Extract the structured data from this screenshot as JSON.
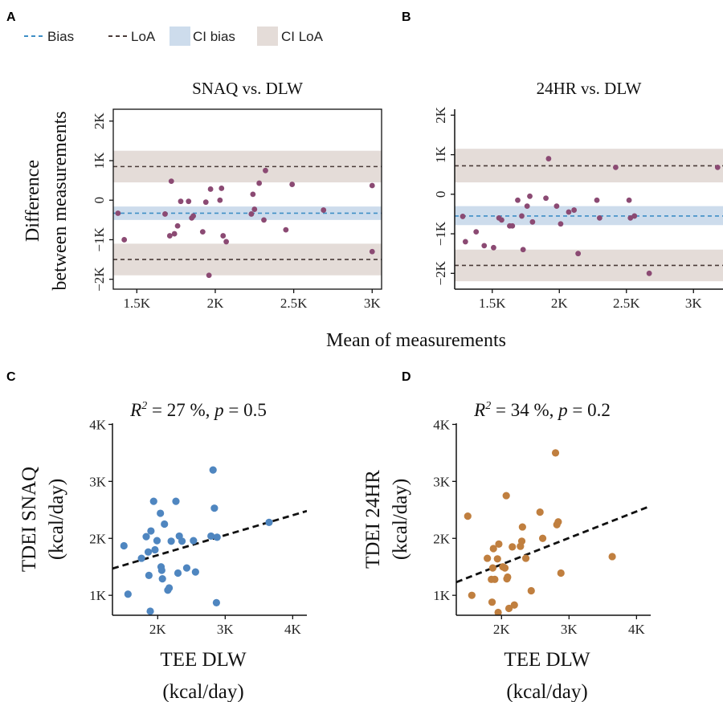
{
  "legend": {
    "items": [
      {
        "label": "Bias",
        "kind": "line",
        "color": "#3f8fc6"
      },
      {
        "label": "LoA",
        "kind": "line",
        "color": "#4a3b38"
      },
      {
        "label": "CI bias",
        "kind": "box",
        "color": "#cddcec"
      },
      {
        "label": "CI LoA",
        "kind": "box",
        "color": "#e4dcd8"
      }
    ]
  },
  "shared_labels": {
    "bland_altman_xlabel": "Mean of measurements",
    "bland_altman_ylabel_line1": "Difference",
    "bland_altman_ylabel_line2": "between measurements"
  },
  "chart_data": [
    {
      "panel": "A",
      "type": "scatter",
      "title": "SNAQ vs. DLW",
      "xlabel": "",
      "ylabel": "",
      "xlim": [
        1350,
        3060
      ],
      "ylim": [
        -2250,
        2300
      ],
      "xticks": [
        1500,
        2000,
        2500,
        3000
      ],
      "xtick_labels": [
        "1.5K",
        "2K",
        "2.5K",
        "3K"
      ],
      "yticks": [
        -2000,
        -1000,
        0,
        1000,
        2000
      ],
      "ytick_labels": [
        "−2K",
        "−1K",
        "0",
        "1K",
        "2K"
      ],
      "bias": -330,
      "bias_ci": [
        -500,
        -160
      ],
      "loa_upper": 850,
      "loa_upper_ci": [
        450,
        1250
      ],
      "loa_lower": -1500,
      "loa_lower_ci": [
        -1900,
        -1100
      ],
      "color": "#8b4a73",
      "points": [
        [
          1380,
          -330
        ],
        [
          1420,
          -1000
        ],
        [
          1680,
          -350
        ],
        [
          1710,
          -900
        ],
        [
          1720,
          480
        ],
        [
          1740,
          -850
        ],
        [
          1760,
          -650
        ],
        [
          1780,
          -30
        ],
        [
          1830,
          -30
        ],
        [
          1850,
          -450
        ],
        [
          1860,
          -400
        ],
        [
          1920,
          -800
        ],
        [
          1940,
          -50
        ],
        [
          1960,
          -1900
        ],
        [
          1970,
          280
        ],
        [
          2030,
          0
        ],
        [
          2040,
          300
        ],
        [
          2050,
          -900
        ],
        [
          2070,
          -1050
        ],
        [
          2230,
          -350
        ],
        [
          2240,
          150
        ],
        [
          2250,
          -230
        ],
        [
          2280,
          430
        ],
        [
          2310,
          -500
        ],
        [
          2320,
          750
        ],
        [
          2450,
          -750
        ],
        [
          2490,
          400
        ],
        [
          2690,
          -250
        ],
        [
          3000,
          370
        ],
        [
          3000,
          -1300
        ]
      ]
    },
    {
      "panel": "B",
      "type": "scatter",
      "title": "24HR vs. DLW",
      "xlabel": "",
      "ylabel": "",
      "xlim": [
        1220,
        3220
      ],
      "ylim": [
        -2400,
        2150
      ],
      "xticks": [
        1500,
        2000,
        2500,
        3000
      ],
      "xtick_labels": [
        "1.5K",
        "2K",
        "2.5K",
        "3K"
      ],
      "yticks": [
        -2000,
        -1000,
        0,
        1000,
        2000
      ],
      "ytick_labels": [
        "−2K",
        "−1K",
        "0",
        "1K",
        "2K"
      ],
      "bias": -550,
      "bias_ci": [
        -780,
        -300
      ],
      "loa_upper": 720,
      "loa_upper_ci": [
        300,
        1150
      ],
      "loa_lower": -1800,
      "loa_lower_ci": [
        -2200,
        -1400
      ],
      "color": "#8b4a73",
      "points": [
        [
          1280,
          -560
        ],
        [
          1300,
          -1200
        ],
        [
          1380,
          -950
        ],
        [
          1440,
          -1300
        ],
        [
          1510,
          -1350
        ],
        [
          1550,
          -600
        ],
        [
          1570,
          -650
        ],
        [
          1630,
          -800
        ],
        [
          1650,
          -800
        ],
        [
          1690,
          -150
        ],
        [
          1720,
          -550
        ],
        [
          1730,
          -1400
        ],
        [
          1760,
          -300
        ],
        [
          1780,
          -50
        ],
        [
          1800,
          -700
        ],
        [
          1900,
          -100
        ],
        [
          1920,
          900
        ],
        [
          1980,
          -300
        ],
        [
          2010,
          -750
        ],
        [
          2070,
          -450
        ],
        [
          2110,
          -400
        ],
        [
          2140,
          -1500
        ],
        [
          2280,
          -150
        ],
        [
          2300,
          -600
        ],
        [
          2420,
          680
        ],
        [
          2520,
          -150
        ],
        [
          2530,
          -600
        ],
        [
          2560,
          -550
        ],
        [
          2670,
          -2000
        ],
        [
          3180,
          680
        ]
      ]
    },
    {
      "panel": "C",
      "type": "scatter",
      "title_prefix": "R",
      "title_sup": "2",
      "title_rest": " = 27 %, ",
      "title_p": "p",
      "title_pval": " = 0.5",
      "xlabel": "TEE DLW",
      "xlabel2": "(kcal/day)",
      "ylabel": "TDEI SNAQ",
      "ylabel2": "(kcal/day)",
      "xlim": [
        1330,
        4210
      ],
      "ylim": [
        650,
        4020
      ],
      "xticks": [
        2000,
        3000,
        4000
      ],
      "xtick_labels": [
        "2K",
        "3K",
        "4K"
      ],
      "yticks": [
        1000,
        2000,
        3000,
        4000
      ],
      "ytick_labels": [
        "1K",
        "2K",
        "3K",
        "4K"
      ],
      "color": "#4f86c0",
      "fit": [
        [
          1330,
          1470
        ],
        [
          4210,
          2480
        ]
      ],
      "points": [
        [
          1500,
          1870
        ],
        [
          1560,
          1020
        ],
        [
          1760,
          1650
        ],
        [
          1830,
          2030
        ],
        [
          1860,
          1760
        ],
        [
          1870,
          1350
        ],
        [
          1890,
          720
        ],
        [
          1900,
          2130
        ],
        [
          1940,
          2650
        ],
        [
          1960,
          1800
        ],
        [
          1990,
          1960
        ],
        [
          2040,
          2440
        ],
        [
          2050,
          1500
        ],
        [
          2060,
          1440
        ],
        [
          2070,
          1290
        ],
        [
          2100,
          2250
        ],
        [
          2150,
          1090
        ],
        [
          2170,
          1130
        ],
        [
          2200,
          1950
        ],
        [
          2270,
          2650
        ],
        [
          2300,
          1390
        ],
        [
          2320,
          2040
        ],
        [
          2360,
          1950
        ],
        [
          2430,
          1480
        ],
        [
          2530,
          1960
        ],
        [
          2560,
          1410
        ],
        [
          2790,
          2040
        ],
        [
          2820,
          3200
        ],
        [
          2840,
          2530
        ],
        [
          2870,
          870
        ],
        [
          2880,
          2020
        ],
        [
          3650,
          2280
        ]
      ]
    },
    {
      "panel": "D",
      "type": "scatter",
      "title_prefix": "R",
      "title_sup": "2",
      "title_rest": " = 34 %, ",
      "title_p": "p",
      "title_pval": " = 0.2",
      "xlabel": "TEE DLW",
      "xlabel2": "(kcal/day)",
      "ylabel": "TDEI 24HR",
      "ylabel2": "(kcal/day)",
      "xlim": [
        1330,
        4210
      ],
      "ylim": [
        650,
        4020
      ],
      "xticks": [
        2000,
        3000,
        4000
      ],
      "xtick_labels": [
        "2K",
        "3K",
        "4K"
      ],
      "yticks": [
        1000,
        2000,
        3000,
        4000
      ],
      "ytick_labels": [
        "1K",
        "2K",
        "3K",
        "4K"
      ],
      "color": "#c07f3f",
      "fit": [
        [
          1330,
          1230
        ],
        [
          4210,
          2570
        ]
      ],
      "points": [
        [
          1500,
          2390
        ],
        [
          1560,
          1000
        ],
        [
          1790,
          1650
        ],
        [
          1850,
          1280
        ],
        [
          1860,
          880
        ],
        [
          1870,
          1480
        ],
        [
          1880,
          1820
        ],
        [
          1900,
          1280
        ],
        [
          1940,
          1640
        ],
        [
          1950,
          700
        ],
        [
          1960,
          1900
        ],
        [
          2020,
          1500
        ],
        [
          2050,
          1480
        ],
        [
          2070,
          2750
        ],
        [
          2080,
          1290
        ],
        [
          2090,
          1320
        ],
        [
          2110,
          770
        ],
        [
          2160,
          1850
        ],
        [
          2190,
          830
        ],
        [
          2280,
          1860
        ],
        [
          2300,
          1950
        ],
        [
          2310,
          2200
        ],
        [
          2360,
          1650
        ],
        [
          2440,
          1080
        ],
        [
          2570,
          2460
        ],
        [
          2610,
          2000
        ],
        [
          2800,
          3500
        ],
        [
          2820,
          2240
        ],
        [
          2840,
          2290
        ],
        [
          2880,
          1390
        ],
        [
          3640,
          1680
        ]
      ]
    }
  ]
}
